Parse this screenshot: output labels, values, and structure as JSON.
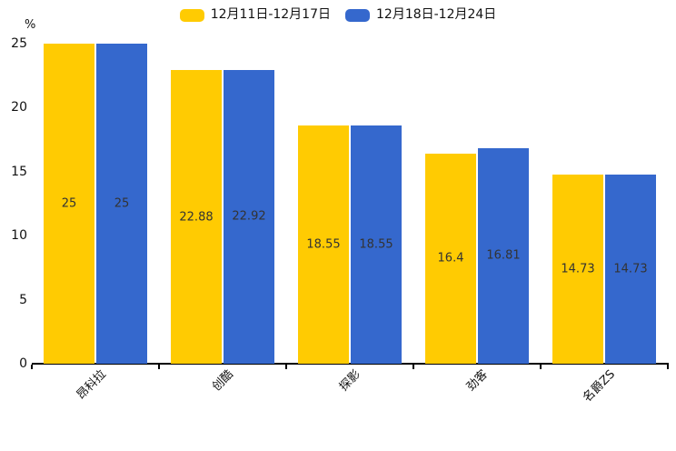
{
  "chart_data": {
    "type": "bar",
    "title": "",
    "unit_label": "%",
    "categories": [
      "昂科拉",
      "创酷",
      "探影",
      "劲客",
      "名爵ZS"
    ],
    "series": [
      {
        "name": "12月11日-12月17日",
        "color": "#FFCB02",
        "values": [
          25,
          22.88,
          18.55,
          16.4,
          14.73
        ],
        "labels": [
          "25",
          "22.88",
          "18.55",
          "16.4",
          "14.73"
        ]
      },
      {
        "name": "12月18日-12月24日",
        "color": "#3568CD",
        "values": [
          25,
          22.92,
          18.55,
          16.81,
          14.73
        ],
        "labels": [
          "25",
          "22.92",
          "18.55",
          "16.81",
          "14.73"
        ]
      }
    ],
    "ylim": [
      0,
      25
    ],
    "yticks": [
      0,
      5,
      10,
      15,
      20,
      25
    ],
    "legend_position": "top",
    "grid": false,
    "value_label_color": "#333333",
    "axis_color": "#000000"
  }
}
